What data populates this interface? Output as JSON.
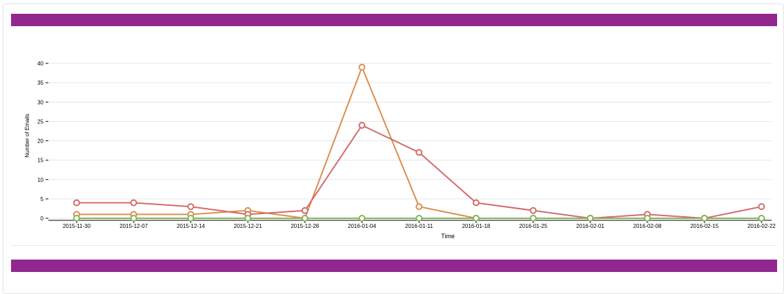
{
  "colors": {
    "header_bar": "#92278f",
    "grid": "#e6e6e6",
    "axis": "#000000"
  },
  "chart_data": {
    "type": "line",
    "title": "",
    "xlabel": "Time",
    "ylabel": "Number of Emails",
    "ylim": [
      0,
      40
    ],
    "yticks": [
      0,
      5,
      10,
      15,
      20,
      25,
      30,
      35,
      40
    ],
    "grid": true,
    "categories": [
      "2015-11-30",
      "2015-12-07",
      "2015-12-14",
      "2015-12-21",
      "2015-12-28",
      "2016-01-04",
      "2016-01-11",
      "2016-01-18",
      "2016-01-25",
      "2016-02-01",
      "2016-02-08",
      "2016-02-15",
      "2016-02-22"
    ],
    "series": [
      {
        "color": "#d98f4f",
        "values": [
          1,
          1,
          1,
          2,
          0,
          39,
          3,
          0,
          0,
          0,
          0,
          0,
          0
        ]
      },
      {
        "color": "#d46a6a",
        "values": [
          4,
          4,
          3,
          1,
          2,
          24,
          17,
          4,
          2,
          0,
          1,
          0,
          3
        ]
      },
      {
        "color": "#86b35a",
        "values": [
          0,
          0,
          0,
          0,
          0,
          0,
          0,
          0,
          0,
          0,
          0,
          0,
          0
        ]
      }
    ]
  }
}
